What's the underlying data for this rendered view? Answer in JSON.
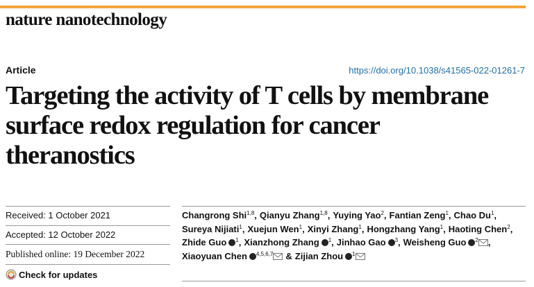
{
  "header": {
    "journal": "nature nanotechnology"
  },
  "article_type": "Article",
  "doi": "https://doi.org/10.1038/s41565-022-01261-7",
  "title_lines": [
    "Targeting the activity of T cells by membrane",
    "surface redox regulation for cancer",
    "theranostics"
  ],
  "dates": {
    "received": "Received: 1 October 2021",
    "accepted": "Accepted: 12 October 2022",
    "published": "Published online: 19 December 2022"
  },
  "check_updates": "Check for updates",
  "author_lines": [
    [
      {
        "name": "Changrong Shi",
        "affil": "1,8",
        "sep": ","
      },
      {
        "name": "Qianyu Zhang",
        "affil": "1,8",
        "sep": ","
      },
      {
        "name": "Yuying Yao",
        "affil": "2",
        "sep": ","
      },
      {
        "name": "Fantian Zeng",
        "affil": "1",
        "sep": ","
      },
      {
        "name": "Chao Du",
        "affil": "1",
        "sep": ","
      }
    ],
    [
      {
        "name": "Sureya Nijiati",
        "affil": "1",
        "sep": ","
      },
      {
        "name": "Xuejun Wen",
        "affil": "1",
        "sep": ","
      },
      {
        "name": "Xinyi Zhang",
        "affil": "1",
        "sep": ","
      },
      {
        "name": "Hongzhang Yang",
        "affil": "1",
        "sep": ","
      },
      {
        "name": "Haoting Chen",
        "affil": "2",
        "sep": ","
      }
    ],
    [
      {
        "name": "Zhide Guo",
        "orcid": true,
        "affil": "1",
        "sep": ","
      },
      {
        "name": "Xianzhong Zhang",
        "orcid": true,
        "affil": "1",
        "sep": ","
      },
      {
        "name": "Jinhao Gao",
        "orcid": true,
        "affil": "3",
        "sep": ","
      },
      {
        "name": "Weisheng Guo",
        "orcid": true,
        "affil": "2",
        "email": true,
        "sep": ","
      }
    ],
    [
      {
        "name": "Xiaoyuan Chen",
        "orcid": true,
        "affil": "4,5,6,7",
        "email": true,
        "sep": "&"
      },
      {
        "name": "Zijian Zhou",
        "orcid": true,
        "affil": "1",
        "email": true
      }
    ]
  ]
}
